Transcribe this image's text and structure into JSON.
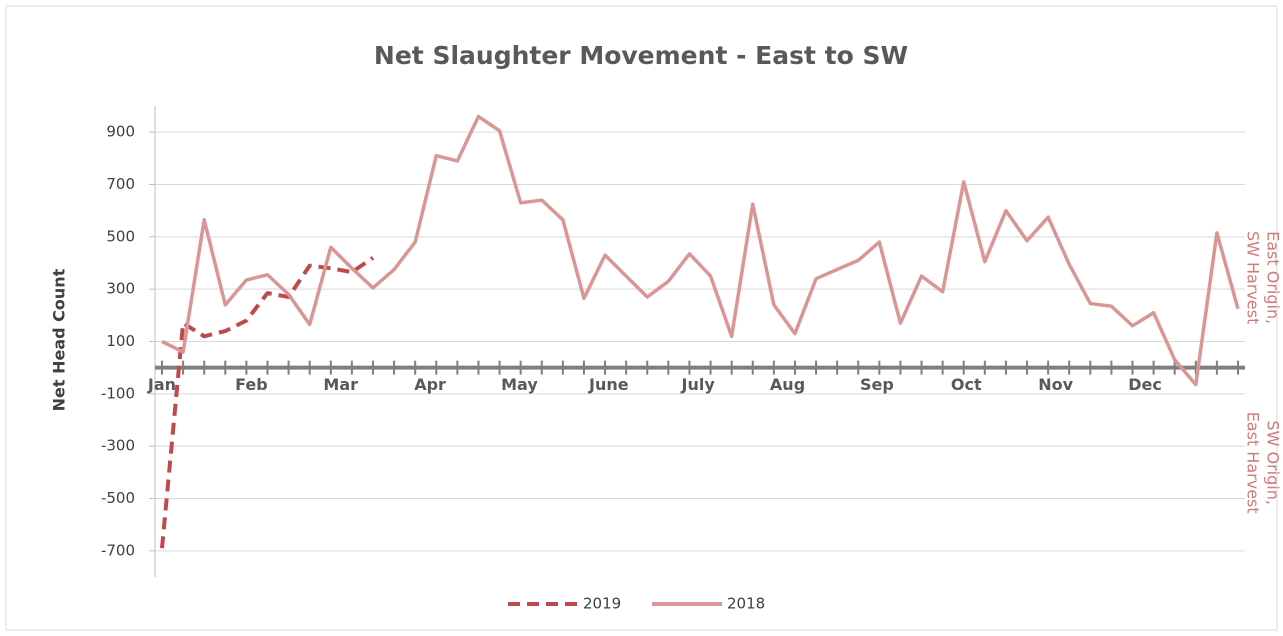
{
  "chart_data": {
    "type": "line",
    "title": "Net Slaughter Movement - East to SW",
    "y_label": "Net Head Count",
    "categories": [
      "Jan",
      "Feb",
      "Mar",
      "Apr",
      "May",
      "June",
      "July",
      "Aug",
      "Sep",
      "Oct",
      "Nov",
      "Dec"
    ],
    "x": [
      1,
      2,
      3,
      4,
      5,
      6,
      7,
      8,
      9,
      10,
      11,
      12,
      13,
      14,
      15,
      16,
      17,
      18,
      19,
      20,
      21,
      22,
      23,
      24,
      25,
      26,
      27,
      28,
      29,
      30,
      31,
      32,
      33,
      34,
      35,
      36,
      37,
      38,
      39,
      40,
      41,
      42,
      43,
      44,
      45,
      46,
      47,
      48,
      49,
      50,
      51,
      52
    ],
    "series": [
      {
        "name": "2019",
        "color": "#c0494b",
        "dashed": true,
        "values": [
          -690,
          170,
          120,
          140,
          180,
          285,
          270,
          390,
          380,
          365,
          420,
          null,
          null,
          null,
          null,
          null,
          null,
          null,
          null,
          null,
          null,
          null,
          null,
          null,
          null,
          null,
          null,
          null,
          null,
          null,
          null,
          null,
          null,
          null,
          null,
          null,
          null,
          null,
          null,
          null,
          null,
          null,
          null,
          null,
          null,
          null,
          null,
          null,
          null,
          null,
          null,
          null
        ]
      },
      {
        "name": "2018",
        "color": "#d99694",
        "dashed": false,
        "values": [
          100,
          60,
          565,
          240,
          335,
          355,
          280,
          165,
          460,
          380,
          305,
          375,
          480,
          810,
          790,
          960,
          905,
          630,
          640,
          565,
          265,
          430,
          350,
          270,
          330,
          435,
          350,
          120,
          625,
          240,
          130,
          340,
          375,
          410,
          480,
          170,
          350,
          290,
          710,
          405,
          600,
          485,
          575,
          395,
          245,
          235,
          160,
          210,
          30,
          -65,
          515,
          225
        ]
      }
    ],
    "ylim": [
      -800,
      1000
    ],
    "yticks": [
      -700,
      -500,
      -300,
      -100,
      100,
      300,
      500,
      700,
      900
    ],
    "grid": true,
    "annotations": [
      [
        "East Origin,",
        "SW Harvest"
      ],
      [
        "SW Origin,",
        "East Harvest"
      ]
    ],
    "legend": "bottom"
  }
}
